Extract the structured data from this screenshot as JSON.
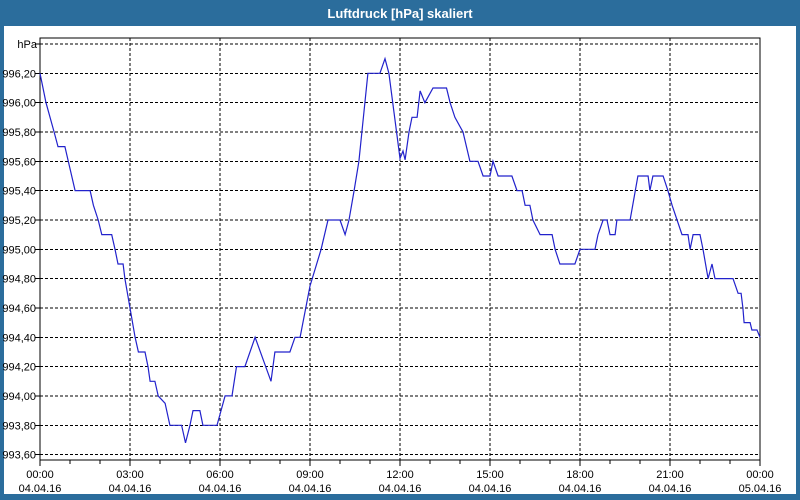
{
  "window": {
    "title": "Luftdruck [hPa] skaliert",
    "titlebar_color": "#2b6d9c",
    "border_color": "#2b6d9c",
    "content_background": "#ffffff"
  },
  "chart_data": {
    "type": "line",
    "title": "Luftdruck [hPa] skaliert",
    "ylabel": "hPa",
    "xlabel": "",
    "ylim": [
      993.6,
      996.4
    ],
    "y_grid_step": 0.2,
    "xlim_hours": [
      0,
      24
    ],
    "x_major_step_hours": 3,
    "x_minor_step_hours": 1,
    "grid": "dashed",
    "legend": "none",
    "line_color": "#2222cc",
    "axis_color": "#000000",
    "y_ticks": [
      {
        "value": 996.2,
        "label": "996,20"
      },
      {
        "value": 996.0,
        "label": "996,00"
      },
      {
        "value": 995.8,
        "label": "995,80"
      },
      {
        "value": 995.6,
        "label": "995,60"
      },
      {
        "value": 995.4,
        "label": "995,40"
      },
      {
        "value": 995.2,
        "label": "995,20"
      },
      {
        "value": 995.0,
        "label": "995,00"
      },
      {
        "value": 994.8,
        "label": "994,80"
      },
      {
        "value": 994.6,
        "label": "994,60"
      },
      {
        "value": 994.4,
        "label": "994,40"
      },
      {
        "value": 994.2,
        "label": "994,20"
      },
      {
        "value": 994.0,
        "label": "994,00"
      },
      {
        "value": 993.8,
        "label": "993,80"
      },
      {
        "value": 993.6,
        "label": "993,60"
      }
    ],
    "x_ticks": [
      {
        "hour": 0,
        "time": "00:00",
        "date": "04.04.16"
      },
      {
        "hour": 3,
        "time": "03:00",
        "date": "04.04.16"
      },
      {
        "hour": 6,
        "time": "06:00",
        "date": "04.04.16"
      },
      {
        "hour": 9,
        "time": "09:00",
        "date": "04.04.16"
      },
      {
        "hour": 12,
        "time": "12:00",
        "date": "04.04.16"
      },
      {
        "hour": 15,
        "time": "15:00",
        "date": "04.04.16"
      },
      {
        "hour": 18,
        "time": "18:00",
        "date": "04.04.16"
      },
      {
        "hour": 21,
        "time": "21:00",
        "date": "04.04.16"
      },
      {
        "hour": 24,
        "time": "00:00",
        "date": "05.04.16"
      }
    ],
    "series": [
      {
        "name": "Luftdruck [hPa]",
        "points": [
          [
            0,
            996.2
          ],
          [
            0.2,
            996.0
          ],
          [
            0.47,
            995.8
          ],
          [
            0.6,
            995.7
          ],
          [
            0.83,
            995.7
          ],
          [
            1.17,
            995.4
          ],
          [
            1.67,
            995.4
          ],
          [
            1.78,
            995.3
          ],
          [
            1.94,
            995.2
          ],
          [
            2.06,
            995.1
          ],
          [
            2.39,
            995.1
          ],
          [
            2.5,
            995.0
          ],
          [
            2.6,
            994.9
          ],
          [
            2.77,
            994.9
          ],
          [
            2.83,
            994.8
          ],
          [
            3.0,
            994.6
          ],
          [
            3.17,
            994.4
          ],
          [
            3.28,
            994.3
          ],
          [
            3.5,
            994.3
          ],
          [
            3.6,
            994.2
          ],
          [
            3.67,
            994.1
          ],
          [
            3.83,
            994.1
          ],
          [
            3.94,
            994.0
          ],
          [
            4.17,
            993.95
          ],
          [
            4.33,
            993.8
          ],
          [
            4.72,
            993.8
          ],
          [
            4.85,
            993.68
          ],
          [
            5.0,
            993.8
          ],
          [
            5.1,
            993.9
          ],
          [
            5.33,
            993.9
          ],
          [
            5.43,
            993.8
          ],
          [
            5.9,
            993.8
          ],
          [
            6.17,
            994.0
          ],
          [
            6.4,
            994.0
          ],
          [
            6.55,
            994.2
          ],
          [
            6.83,
            994.2
          ],
          [
            7.17,
            994.4
          ],
          [
            7.7,
            994.1
          ],
          [
            7.83,
            994.3
          ],
          [
            8.33,
            994.3
          ],
          [
            8.5,
            994.4
          ],
          [
            8.67,
            994.4
          ],
          [
            9.0,
            994.75
          ],
          [
            9.37,
            995.0
          ],
          [
            9.6,
            995.2
          ],
          [
            10.0,
            995.2
          ],
          [
            10.17,
            995.1
          ],
          [
            10.3,
            995.2
          ],
          [
            10.47,
            995.4
          ],
          [
            10.63,
            995.6
          ],
          [
            10.93,
            996.2
          ],
          [
            11.33,
            996.2
          ],
          [
            11.5,
            996.3
          ],
          [
            11.63,
            996.2
          ],
          [
            12.0,
            995.62
          ],
          [
            12.1,
            995.67
          ],
          [
            12.17,
            995.61
          ],
          [
            12.3,
            995.8
          ],
          [
            12.4,
            995.9
          ],
          [
            12.57,
            995.9
          ],
          [
            12.67,
            996.08
          ],
          [
            12.83,
            996.0
          ],
          [
            13.1,
            996.1
          ],
          [
            13.55,
            996.1
          ],
          [
            13.67,
            996.0
          ],
          [
            13.83,
            995.9
          ],
          [
            14.1,
            995.8
          ],
          [
            14.33,
            995.6
          ],
          [
            14.6,
            995.6
          ],
          [
            14.77,
            995.5
          ],
          [
            15.0,
            995.5
          ],
          [
            15.1,
            995.6
          ],
          [
            15.27,
            995.5
          ],
          [
            15.73,
            995.5
          ],
          [
            15.9,
            995.4
          ],
          [
            16.07,
            995.4
          ],
          [
            16.17,
            995.3
          ],
          [
            16.33,
            995.3
          ],
          [
            16.43,
            995.2
          ],
          [
            16.67,
            995.1
          ],
          [
            17.07,
            995.1
          ],
          [
            17.17,
            995.0
          ],
          [
            17.33,
            994.9
          ],
          [
            17.83,
            994.9
          ],
          [
            18.0,
            995.0
          ],
          [
            18.5,
            995.0
          ],
          [
            18.6,
            995.1
          ],
          [
            18.77,
            995.2
          ],
          [
            18.9,
            995.2
          ],
          [
            19.0,
            995.1
          ],
          [
            19.17,
            995.1
          ],
          [
            19.23,
            995.2
          ],
          [
            19.67,
            995.2
          ],
          [
            19.93,
            995.5
          ],
          [
            20.27,
            995.5
          ],
          [
            20.33,
            995.4
          ],
          [
            20.43,
            995.5
          ],
          [
            20.77,
            995.5
          ],
          [
            20.93,
            995.4
          ],
          [
            21.07,
            995.3
          ],
          [
            21.4,
            995.1
          ],
          [
            21.6,
            995.1
          ],
          [
            21.67,
            995.0
          ],
          [
            21.77,
            995.1
          ],
          [
            22.0,
            995.1
          ],
          [
            22.1,
            995.0
          ],
          [
            22.27,
            994.8
          ],
          [
            22.4,
            994.9
          ],
          [
            22.5,
            994.8
          ],
          [
            23.1,
            994.8
          ],
          [
            23.27,
            994.7
          ],
          [
            23.37,
            994.7
          ],
          [
            23.43,
            994.6
          ],
          [
            23.47,
            994.5
          ],
          [
            23.67,
            994.5
          ],
          [
            23.73,
            994.45
          ],
          [
            23.9,
            994.45
          ],
          [
            24.0,
            994.4
          ]
        ]
      }
    ]
  }
}
